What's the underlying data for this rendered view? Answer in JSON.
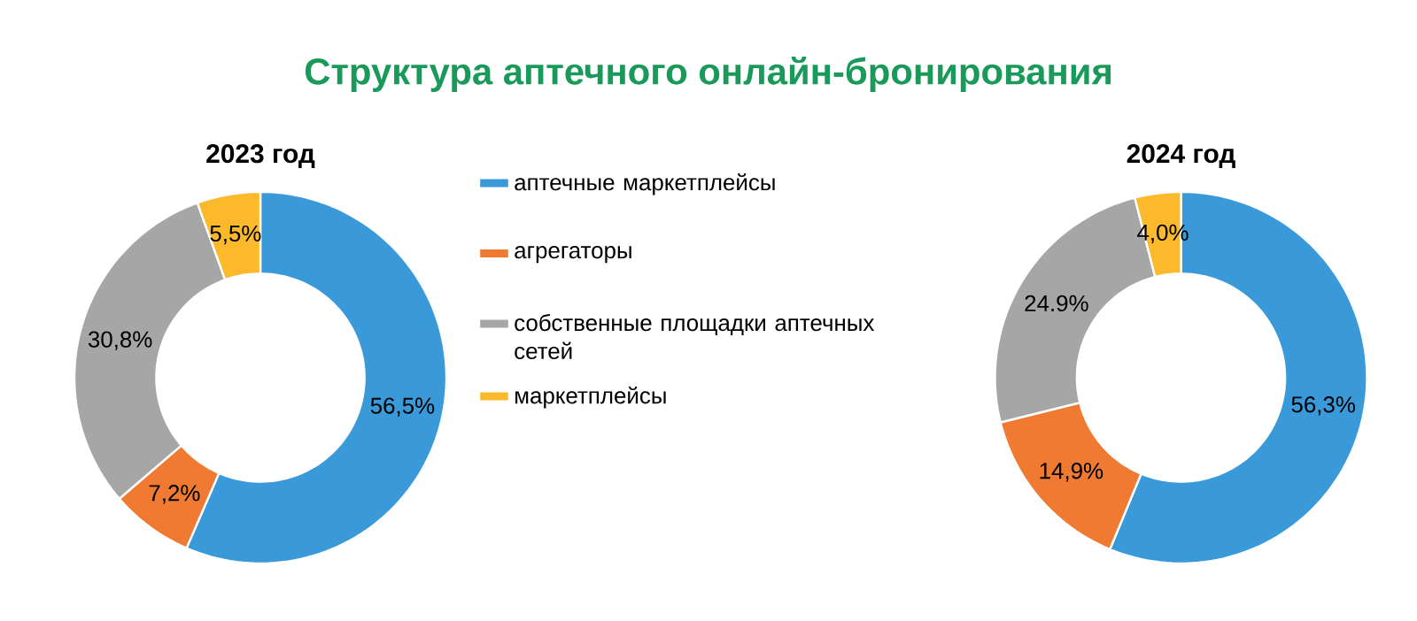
{
  "chart_data": [
    {
      "type": "donut",
      "title": "Структура аптечного онлайн-бронирования",
      "subtitle": "2023 год",
      "categories": [
        "аптечные маркетплейсы",
        "агрегаторы",
        "собственные площадки аптечных сетей",
        "маркетплейсы"
      ],
      "values": [
        56.5,
        7.2,
        30.8,
        5.5
      ],
      "colors": [
        "#3a9ad9",
        "#f07a32",
        "#a6a6a6",
        "#fbb92b"
      ],
      "value_labels": [
        "56,5%",
        "7,2%",
        "30,8%",
        "5,5%"
      ],
      "legend": "right"
    },
    {
      "type": "donut",
      "subtitle": "2024 год",
      "categories": [
        null,
        null,
        null,
        null
      ],
      "values": [
        56.3,
        14.9,
        24.9,
        4.0
      ],
      "colors": [
        "#3a9ad9",
        "#f07a32",
        "#a6a6a6",
        "#fbb92b"
      ],
      "value_labels": [
        "56,3%",
        "14,9%",
        "24.9%",
        "4,0%"
      ]
    }
  ]
}
